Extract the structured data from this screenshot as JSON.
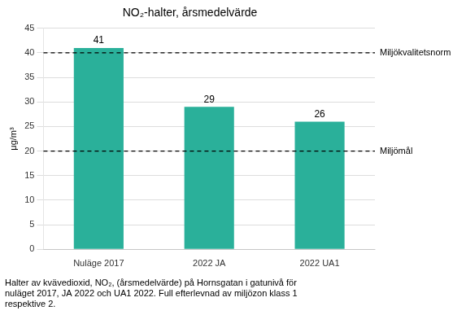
{
  "chart_data": {
    "type": "bar",
    "title": "NO₂-halter, årsmedelvärde",
    "ylabel": "μg/m³",
    "categories": [
      "Nuläge 2017",
      "2022 JA",
      "2022 UA1"
    ],
    "values": [
      41,
      29,
      26
    ],
    "color": "#2ab09a",
    "ylim": [
      0,
      45
    ],
    "yticks": [
      0,
      5,
      10,
      15,
      20,
      25,
      30,
      35,
      40,
      45
    ],
    "grid": true,
    "data_labels": true,
    "annotations": [
      {
        "y": 40,
        "label": "Miljökvalitetsnorm",
        "line_style": "dashed"
      },
      {
        "y": 20,
        "label": "Miljömål",
        "line_style": "dashed"
      }
    ],
    "caption": "Halter av kvävedioxid, NO₂, (årsmedelvärde) på Hornsgatan i gatunivå för\nnuläget 2017, JA 2022 och UA1 2022. Full efterlevnad av miljözon klass 1\nrespektive 2."
  }
}
